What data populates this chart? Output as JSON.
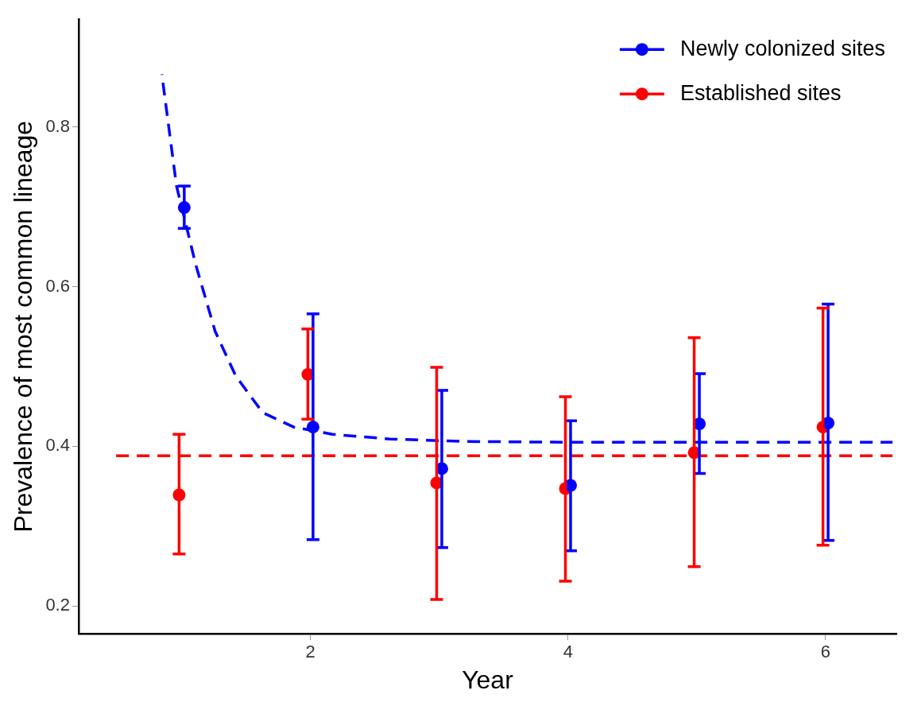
{
  "chart_data": {
    "type": "scatter",
    "xlabel": "Year",
    "ylabel": "Prevalence of most common lineage",
    "xlim": [
      0.2,
      6.55
    ],
    "ylim": [
      0.165,
      0.935
    ],
    "xticks": [
      2,
      4,
      6
    ],
    "yticks": [
      0.2,
      0.4,
      0.6,
      0.8
    ],
    "grid": false,
    "legend": "top right",
    "series": [
      {
        "name": "Newly colonized sites",
        "color": "#0000ff",
        "type": "scatter",
        "marker": "circle",
        "x": [
          1.02,
          2.02,
          3.02,
          4.02,
          5.02,
          6.02
        ],
        "values": [
          0.699,
          0.424,
          0.372,
          0.351,
          0.428,
          0.429
        ],
        "errors": [
          [
            0.673,
            0.726
          ],
          [
            0.283,
            0.566
          ],
          [
            0.273,
            0.47
          ],
          [
            0.269,
            0.432
          ],
          [
            0.366,
            0.491
          ],
          [
            0.282,
            0.578
          ]
        ]
      },
      {
        "name": "Established sites",
        "color": "#ff0000",
        "type": "scatter",
        "marker": "circle",
        "x": [
          0.98,
          1.98,
          2.98,
          3.98,
          4.98,
          5.98
        ],
        "values": [
          0.339,
          0.49,
          0.354,
          0.347,
          0.392,
          0.424
        ],
        "errors": [
          [
            0.265,
            0.415
          ],
          [
            0.434,
            0.547
          ],
          [
            0.208,
            0.499
          ],
          [
            0.231,
            0.462
          ],
          [
            0.249,
            0.536
          ],
          [
            0.276,
            0.573
          ]
        ]
      },
      {
        "color": "#0000ff",
        "type": "line",
        "marker": "none",
        "line_style": "dashed",
        "x": [
          0.846,
          0.96,
          1.11,
          1.26,
          1.42,
          1.63,
          1.87,
          2.17,
          2.62,
          3.2,
          4,
          5,
          6.52
        ],
        "values": [
          0.866,
          0.726,
          0.627,
          0.544,
          0.488,
          0.442,
          0.424,
          0.415,
          0.409,
          0.406,
          0.405,
          0.405,
          0.405
        ]
      },
      {
        "color": "#ff0000",
        "type": "line",
        "marker": "none",
        "line_style": "dashed",
        "x": [
          0.49,
          6.52
        ],
        "values": [
          0.388,
          0.388
        ]
      }
    ]
  }
}
